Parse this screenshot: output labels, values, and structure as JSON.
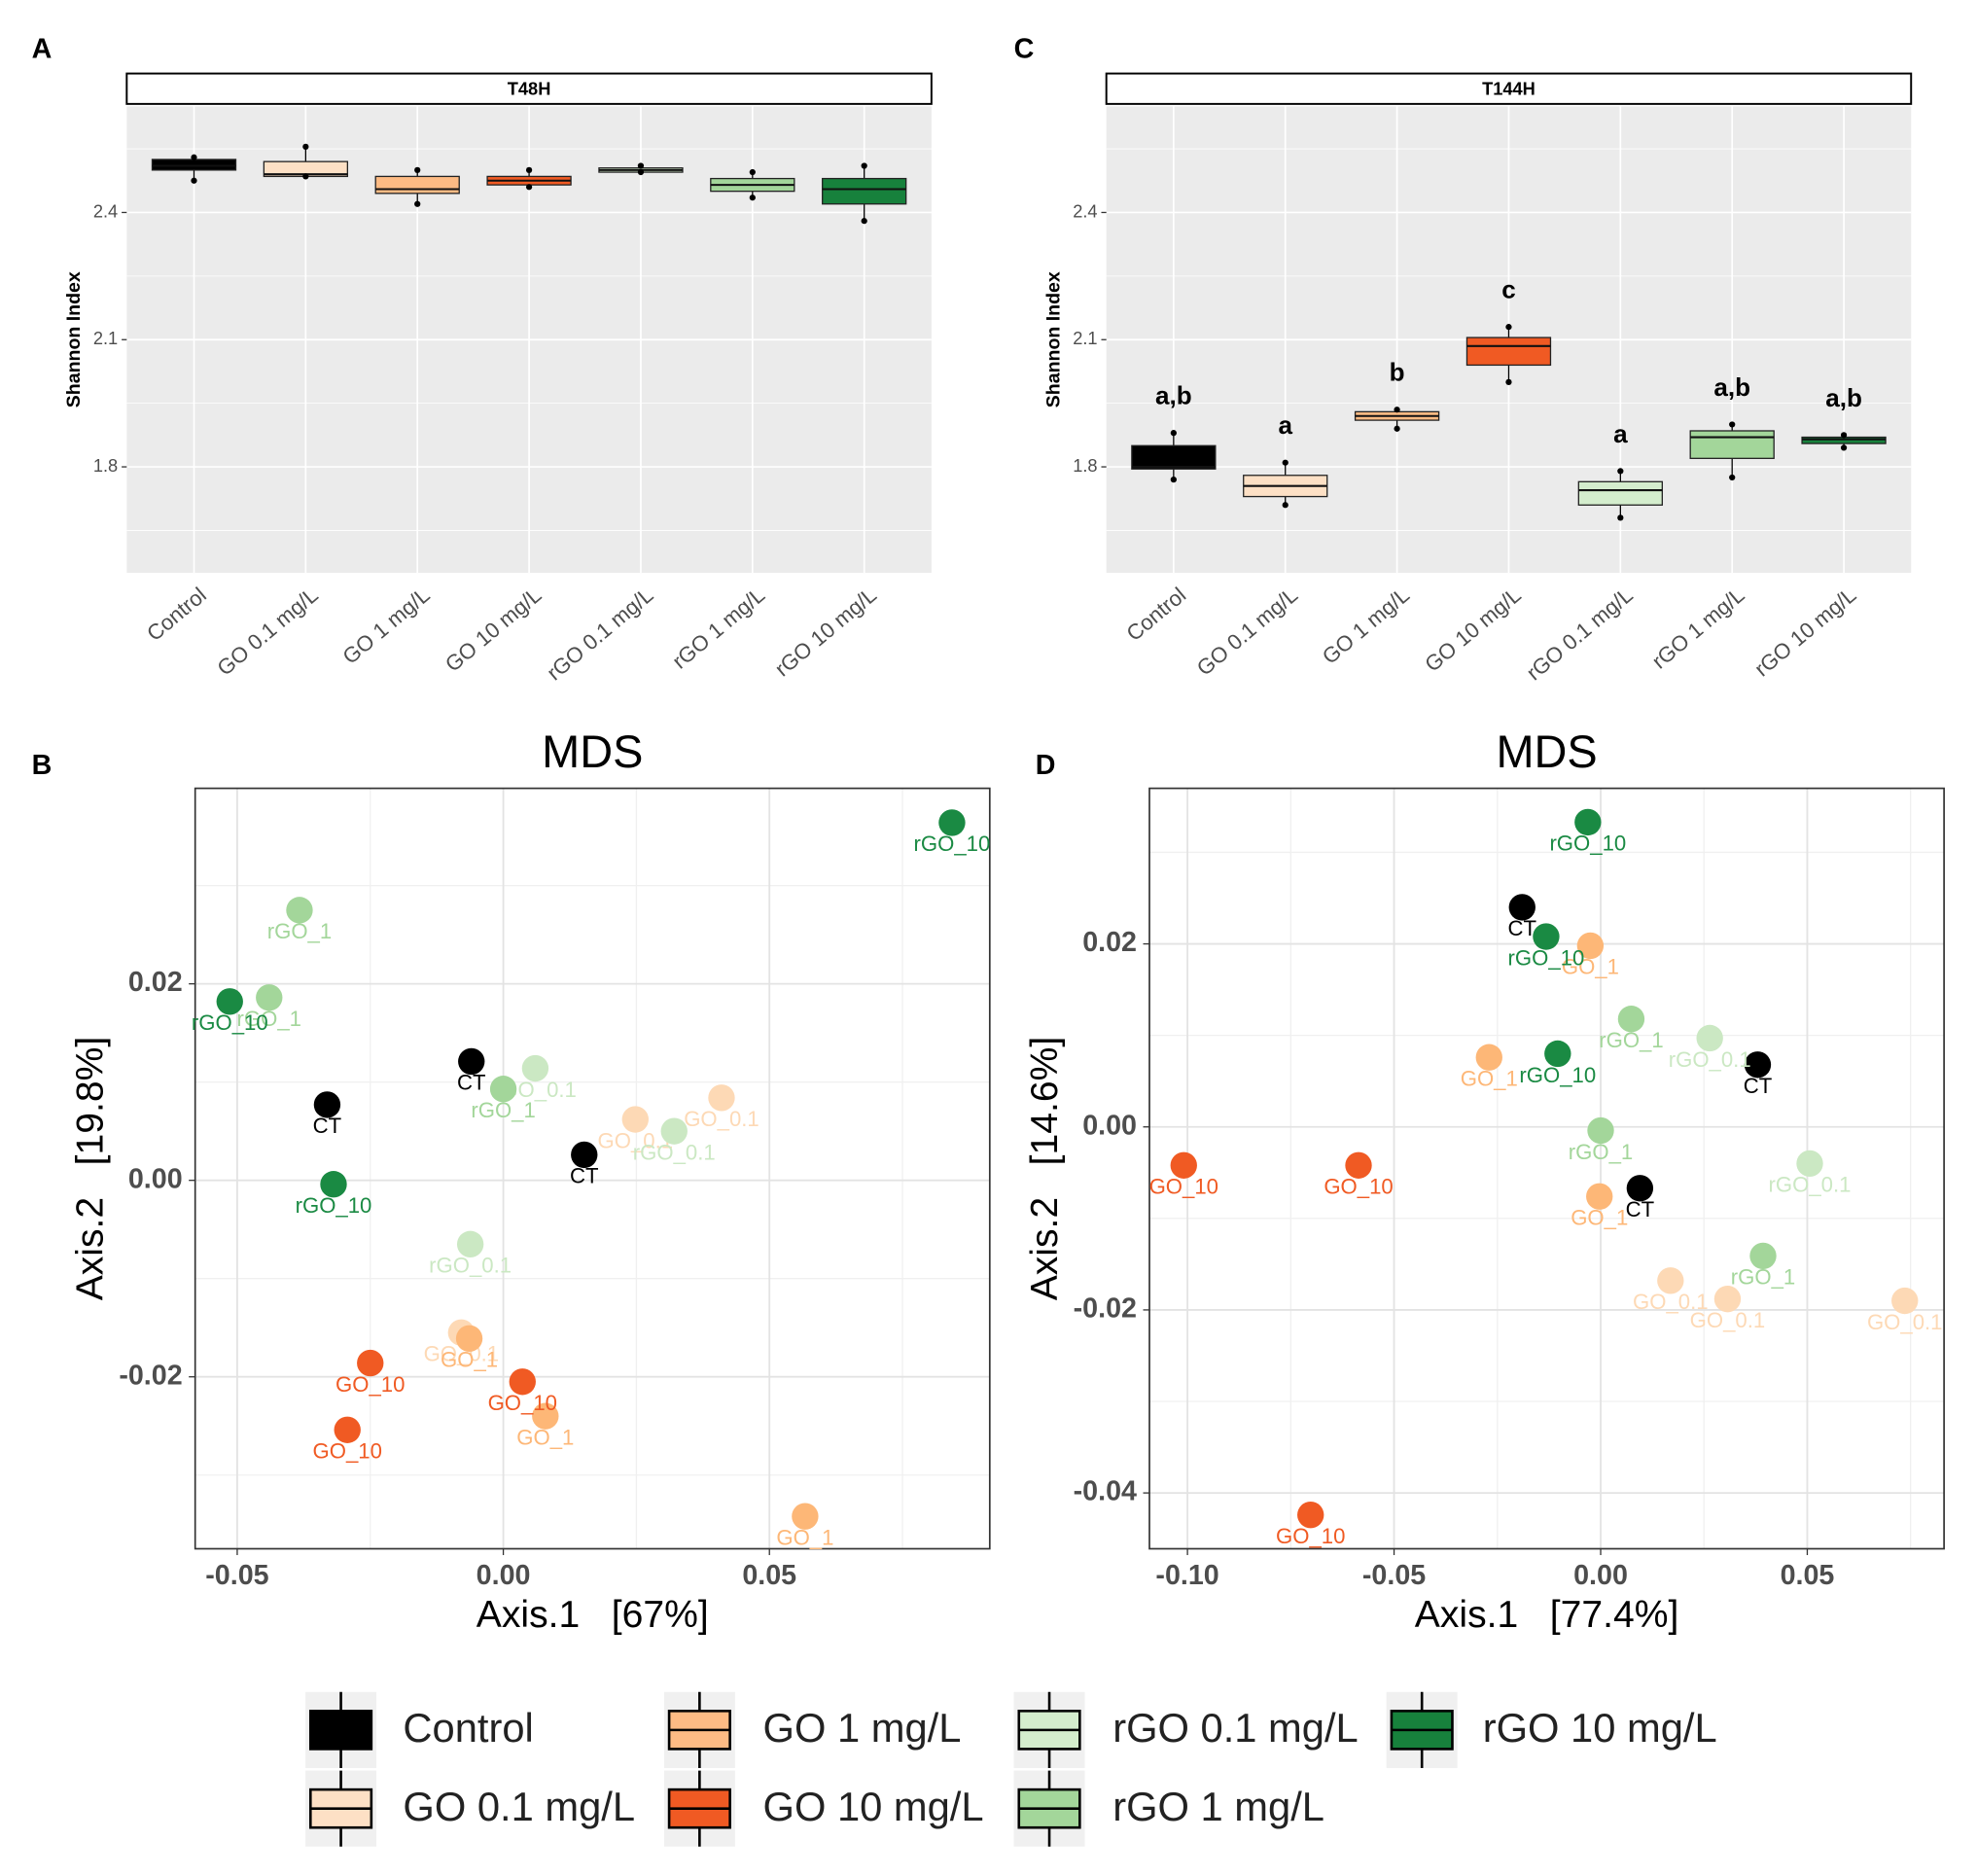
{
  "chart_data": [
    {
      "type": "box",
      "panel": "A",
      "title": "T48H",
      "ylabel": "Shannon Index",
      "categories": [
        "Control",
        "GO 0.1 mg/L",
        "GO 1 mg/L",
        "GO 10 mg/L",
        "rGO 0.1 mg/L",
        "rGO 1 mg/L",
        "rGO 10 mg/L"
      ],
      "colors": [
        "#000000",
        "#fde0c5",
        "#fdbb84",
        "#f05a23",
        "#d4edcd",
        "#a3d69a",
        "#17813c"
      ],
      "stats": [
        {
          "min": 2.475,
          "q1": 2.5,
          "median": 2.51,
          "q3": 2.525,
          "max": 2.53
        },
        {
          "min": 2.485,
          "q1": 2.485,
          "median": 2.49,
          "q3": 2.52,
          "max": 2.555
        },
        {
          "min": 2.42,
          "q1": 2.445,
          "median": 2.455,
          "q3": 2.485,
          "max": 2.5
        },
        {
          "min": 2.46,
          "q1": 2.465,
          "median": 2.475,
          "q3": 2.485,
          "max": 2.5
        },
        {
          "min": 2.495,
          "q1": 2.495,
          "median": 2.5,
          "q3": 2.505,
          "max": 2.51
        },
        {
          "min": 2.435,
          "q1": 2.45,
          "median": 2.465,
          "q3": 2.48,
          "max": 2.495
        },
        {
          "min": 2.38,
          "q1": 2.42,
          "median": 2.455,
          "q3": 2.48,
          "max": 2.51
        }
      ],
      "ylim": [
        1.55,
        2.65
      ],
      "yticks": [
        1.8,
        2.1,
        2.4
      ],
      "yminor": [
        1.65,
        1.95,
        2.25,
        2.55
      ],
      "grid": true
    },
    {
      "type": "scatter",
      "panel": "B",
      "title": "MDS",
      "xlabel": "Axis.1   [67%]",
      "ylabel": "Axis.2   [19.8%]",
      "xlim": [
        -0.0579,
        0.0914
      ],
      "ylim": [
        -0.0375,
        0.0399
      ],
      "xticks": [
        -0.05,
        {
          "value": 0,
          "label": "0.00"
        },
        0.05
      ],
      "yticks": [
        -0.02,
        {
          "value": 0,
          "label": "0.00"
        },
        0.02
      ],
      "xminor": [
        -0.025,
        0.025,
        0.075
      ],
      "yminor": [
        -0.03,
        -0.01,
        0.01,
        0.03
      ],
      "grid": true,
      "series": [
        {
          "name": "CT",
          "color": "#000000",
          "x": [
            -0.0331,
            -0.006,
            0.0152
          ],
          "y": [
            0.0077,
            0.0121,
            0.0026
          ]
        },
        {
          "name": "GO_0.1",
          "color": "#fdd9b5",
          "x": [
            0.0248,
            0.041,
            -0.0079
          ],
          "y": [
            0.0062,
            0.0084,
            -0.0155
          ]
        },
        {
          "name": "GO_1",
          "color": "#fdb777",
          "x": [
            -0.0064,
            0.0079,
            0.0567
          ],
          "y": [
            -0.0161,
            -0.024,
            -0.0342
          ]
        },
        {
          "name": "GO_10",
          "color": "#f05a23",
          "x": [
            -0.025,
            0.0036,
            -0.0293
          ],
          "y": [
            -0.0186,
            -0.0205,
            -0.0254
          ]
        },
        {
          "name": "rGO_0.1",
          "color": "#cbe8c3",
          "x": [
            0.006,
            0.0321,
            -0.0062
          ],
          "y": [
            0.0114,
            0.005,
            -0.0065
          ]
        },
        {
          "name": "rGO_1",
          "color": "#a3d69a",
          "x": [
            -0.0383,
            -0.044,
            0.0
          ],
          "y": [
            0.0275,
            0.0186,
            0.0093
          ]
        },
        {
          "name": "rGO_10",
          "color": "#1a8a43",
          "x": [
            0.0843,
            -0.0514,
            -0.0319
          ],
          "y": [
            0.0364,
            0.0182,
            -0.0004
          ]
        }
      ]
    },
    {
      "type": "box",
      "panel": "C",
      "title": "T144H",
      "ylabel": "Shannon Index",
      "categories": [
        "Control",
        "GO 0.1 mg/L",
        "GO 1 mg/L",
        "GO 10 mg/L",
        "rGO 0.1 mg/L",
        "rGO 1 mg/L",
        "rGO 10 mg/L"
      ],
      "colors": [
        "#000000",
        "#fde0c5",
        "#fdbb84",
        "#f05a23",
        "#d4edcd",
        "#a3d69a",
        "#17813c"
      ],
      "stats": [
        {
          "min": 1.77,
          "q1": 1.795,
          "median": 1.8,
          "q3": 1.85,
          "max": 1.88
        },
        {
          "min": 1.71,
          "q1": 1.73,
          "median": 1.755,
          "q3": 1.78,
          "max": 1.81
        },
        {
          "min": 1.89,
          "q1": 1.91,
          "median": 1.92,
          "q3": 1.93,
          "max": 1.935
        },
        {
          "min": 2.0,
          "q1": 2.04,
          "median": 2.085,
          "q3": 2.105,
          "max": 2.13
        },
        {
          "min": 1.68,
          "q1": 1.71,
          "median": 1.745,
          "q3": 1.765,
          "max": 1.79
        },
        {
          "min": 1.775,
          "q1": 1.82,
          "median": 1.87,
          "q3": 1.885,
          "max": 1.9
        },
        {
          "min": 1.845,
          "q1": 1.855,
          "median": 1.865,
          "q3": 1.87,
          "max": 1.875
        }
      ],
      "annotations": [
        "a,b",
        "a",
        "b",
        "c",
        "a",
        "a,b",
        "a,b"
      ],
      "ylim": [
        1.55,
        2.65
      ],
      "yticks": [
        1.8,
        2.1,
        2.4
      ],
      "yminor": [
        1.65,
        1.95,
        2.25,
        2.55
      ],
      "grid": true
    },
    {
      "type": "scatter",
      "panel": "D",
      "title": "MDS",
      "xlabel": "Axis.1   [77.4%]",
      "ylabel": "Axis.2   [14.6%]",
      "xlim": [
        -0.1092,
        0.0831
      ],
      "ylim": [
        -0.0461,
        0.037
      ],
      "xticks": [
        {
          "value": -0.1,
          "label": "-0.10"
        },
        -0.05,
        {
          "value": 0,
          "label": "0.00"
        },
        0.05
      ],
      "yticks": [
        -0.04,
        -0.02,
        {
          "value": 0,
          "label": "0.00"
        },
        0.02
      ],
      "xminor": [
        -0.075,
        -0.025,
        0.025,
        0.075
      ],
      "yminor": [
        -0.03,
        -0.01,
        0.01,
        0.03
      ],
      "grid": true,
      "series": [
        {
          "name": "CT",
          "color": "#000000",
          "x": [
            -0.019,
            0.038,
            0.0095
          ],
          "y": [
            0.024,
            0.0068,
            -0.0067
          ]
        },
        {
          "name": "GO_0.1",
          "color": "#fdd9b5",
          "x": [
            0.0169,
            0.0307,
            0.0736
          ],
          "y": [
            -0.0168,
            -0.0188,
            -0.019
          ]
        },
        {
          "name": "GO_1",
          "color": "#fdb777",
          "x": [
            -0.0025,
            -0.027,
            -0.0003
          ],
          "y": [
            0.0198,
            0.0076,
            -0.0076
          ]
        },
        {
          "name": "GO_10",
          "color": "#f05a23",
          "x": [
            -0.1009,
            -0.0586,
            -0.0702
          ],
          "y": [
            -0.0042,
            -0.0042,
            -0.0424
          ]
        },
        {
          "name": "rGO_0.1",
          "color": "#cbe8c3",
          "x": [
            0.0264,
            0.0506
          ],
          "y": [
            0.0097,
            -0.004
          ]
        },
        {
          "name": "rGO_1",
          "color": "#a3d69a",
          "x": [
            0.0074,
            0.0,
            0.0393
          ],
          "y": [
            0.0118,
            -0.0004,
            -0.0141
          ]
        },
        {
          "name": "rGO_10",
          "color": "#1a8a43",
          "x": [
            -0.0031,
            -0.0132,
            -0.0104
          ],
          "y": [
            0.0333,
            0.0208,
            0.008
          ]
        }
      ]
    }
  ]
}
